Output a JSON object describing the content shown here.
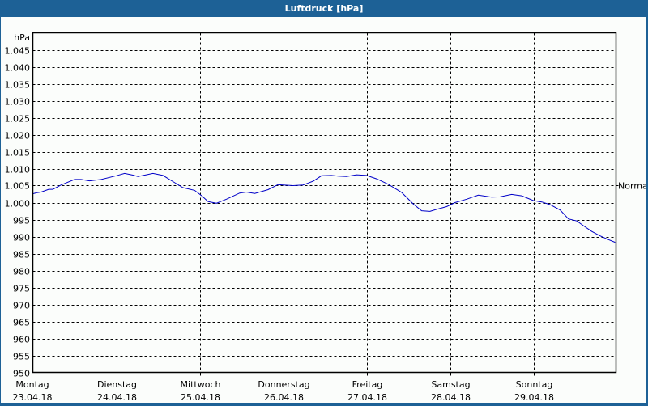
{
  "window": {
    "title": "Luftdruck [hPa]"
  },
  "chart_data": {
    "type": "line",
    "title": "Luftdruck [hPa]",
    "ylabel": "hPa",
    "xlabel": "",
    "ylim": [
      950,
      1050
    ],
    "y_ticks": [
      "1.045",
      "1.040",
      "1.035",
      "1.030",
      "1.025",
      "1.020",
      "1.015",
      "1.010",
      "1.005",
      "1.000",
      "995",
      "990",
      "985",
      "980",
      "975",
      "970",
      "965",
      "960",
      "955",
      "950"
    ],
    "x_ticks": [
      {
        "day": "Montag",
        "date": "23.04.18"
      },
      {
        "day": "Dienstag",
        "date": "24.04.18"
      },
      {
        "day": "Mittwoch",
        "date": "25.04.18"
      },
      {
        "day": "Donnerstag",
        "date": "26.04.18"
      },
      {
        "day": "Freitag",
        "date": "27.04.18"
      },
      {
        "day": "Samstag",
        "date": "28.04.18"
      },
      {
        "day": "Sonntag",
        "date": "29.04.18"
      }
    ],
    "reference_line": {
      "label": "Normal",
      "value": 1005
    },
    "grid": true,
    "series": [
      {
        "name": "Luftdruck",
        "color": "#0000c8",
        "x_days": [
          0.0,
          0.05,
          0.1,
          0.19,
          0.24,
          0.34,
          0.5,
          0.58,
          0.68,
          0.82,
          1.0,
          1.1,
          1.2,
          1.26,
          1.36,
          1.44,
          1.56,
          1.68,
          1.8,
          1.94,
          2.03,
          2.1,
          2.2,
          2.32,
          2.48,
          2.56,
          2.66,
          2.82,
          2.94,
          3.0,
          3.12,
          3.24,
          3.36,
          3.46,
          3.58,
          3.66,
          3.76,
          3.88,
          4.0,
          4.12,
          4.26,
          4.42,
          4.56,
          4.66,
          4.76,
          4.84,
          4.96,
          5.06,
          5.2,
          5.34,
          5.5,
          5.6,
          5.74,
          5.86,
          6.0,
          6.1,
          6.2,
          6.32,
          6.42,
          6.52,
          6.6,
          6.7,
          6.8,
          6.9,
          6.98
        ],
        "values": [
          1002.6,
          1002.9,
          1003.1,
          1003.9,
          1003.9,
          1005.2,
          1006.8,
          1006.8,
          1006.4,
          1006.8,
          1007.9,
          1008.6,
          1008.1,
          1007.7,
          1008.2,
          1008.6,
          1008.0,
          1006.2,
          1004.4,
          1003.6,
          1001.9,
          1000.3,
          999.8,
          1001.0,
          1002.8,
          1003.1,
          1002.7,
          1003.8,
          1005.3,
          1005.2,
          1005.0,
          1005.2,
          1006.3,
          1007.9,
          1008.0,
          1007.8,
          1007.7,
          1008.2,
          1008.0,
          1007.0,
          1005.4,
          1003.0,
          999.6,
          997.6,
          997.4,
          998.0,
          998.8,
          1000.0,
          1001.0,
          1002.2,
          1001.6,
          1001.7,
          1002.4,
          1002.0,
          1000.6,
          1000.2,
          999.4,
          997.8,
          995.2,
          994.6,
          993.2,
          991.5,
          990.2,
          989.1,
          988.3
        ]
      }
    ]
  }
}
